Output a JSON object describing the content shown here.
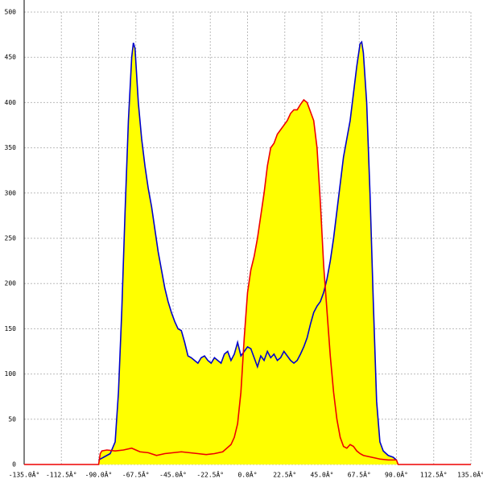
{
  "chart_data": {
    "type": "area",
    "xlim": [
      -135,
      135
    ],
    "ylim": [
      0,
      500
    ],
    "xticks": [
      {
        "value": -135,
        "label": "-135.0Â°"
      },
      {
        "value": -112.5,
        "label": "-112.5Â°"
      },
      {
        "value": -90,
        "label": "-90.0Â°"
      },
      {
        "value": -67.5,
        "label": "-67.5Â°"
      },
      {
        "value": -45,
        "label": "-45.0Â°"
      },
      {
        "value": -22.5,
        "label": "-22.5Â°"
      },
      {
        "value": 0,
        "label": "0.0Â°"
      },
      {
        "value": 22.5,
        "label": "22.5Â°"
      },
      {
        "value": 45,
        "label": "45.0Â°"
      },
      {
        "value": 67.5,
        "label": "67.5Â°"
      },
      {
        "value": 90,
        "label": "90.0Â°"
      },
      {
        "value": 112.5,
        "label": "112.5Â°"
      },
      {
        "value": 135,
        "label": "135.0Â°"
      }
    ],
    "yticks": [
      0,
      50,
      100,
      150,
      200,
      250,
      300,
      350,
      400,
      450,
      500
    ],
    "grid": true,
    "fill_color": "#ffff00",
    "series": [
      {
        "color": "#0000cc",
        "x": [
          -90,
          -87,
          -83,
          -80,
          -78,
          -76,
          -74,
          -72,
          -70,
          -69,
          -68,
          -66,
          -64,
          -62,
          -60,
          -58,
          -56,
          -54,
          -52,
          -50,
          -48,
          -46,
          -44,
          -42,
          -40,
          -38,
          -36,
          -34,
          -32,
          -30,
          -28,
          -26,
          -24,
          -22,
          -20,
          -18,
          -16,
          -14,
          -12,
          -10,
          -8,
          -6,
          -4,
          -2,
          0,
          2,
          4,
          6,
          8,
          10,
          12,
          14,
          16,
          18,
          20,
          22,
          24,
          26,
          28,
          30,
          32,
          34,
          36,
          38,
          40,
          42,
          44,
          46,
          48,
          50,
          52,
          54,
          56,
          58,
          60,
          62,
          64,
          66,
          68,
          69,
          70,
          72,
          74,
          76,
          78,
          80,
          82,
          85,
          88,
          90
        ],
        "values": [
          5,
          8,
          12,
          25,
          80,
          170,
          280,
          380,
          450,
          466,
          460,
          400,
          360,
          330,
          305,
          285,
          260,
          235,
          215,
          195,
          180,
          168,
          158,
          150,
          148,
          135,
          120,
          118,
          115,
          112,
          118,
          120,
          115,
          112,
          118,
          115,
          112,
          122,
          125,
          115,
          122,
          135,
          120,
          125,
          130,
          128,
          118,
          108,
          120,
          115,
          125,
          118,
          122,
          115,
          118,
          125,
          120,
          115,
          112,
          115,
          122,
          130,
          140,
          155,
          168,
          175,
          180,
          190,
          205,
          225,
          250,
          280,
          310,
          340,
          360,
          380,
          410,
          440,
          465,
          467,
          455,
          400,
          300,
          180,
          70,
          25,
          15,
          10,
          8,
          5
        ]
      },
      {
        "color": "#ee0000",
        "x": [
          -135,
          -90,
          -89,
          -88,
          -85,
          -80,
          -75,
          -70,
          -65,
          -60,
          -55,
          -50,
          -45,
          -40,
          -35,
          -30,
          -25,
          -20,
          -15,
          -10,
          -8,
          -6,
          -4,
          -2,
          0,
          2,
          4,
          6,
          8,
          10,
          12,
          14,
          16,
          18,
          20,
          22,
          24,
          26,
          28,
          30,
          32,
          34,
          36,
          38,
          40,
          42,
          44,
          46,
          48,
          50,
          52,
          54,
          56,
          58,
          60,
          62,
          64,
          66,
          68,
          70,
          75,
          80,
          85,
          90,
          91,
          135
        ],
        "values": [
          0,
          0,
          12,
          15,
          16,
          15,
          16,
          18,
          14,
          13,
          10,
          12,
          13,
          14,
          13,
          12,
          11,
          12,
          14,
          22,
          30,
          45,
          80,
          140,
          190,
          215,
          230,
          250,
          275,
          300,
          330,
          350,
          355,
          365,
          370,
          375,
          380,
          388,
          392,
          392,
          398,
          403,
          400,
          390,
          380,
          350,
          290,
          220,
          170,
          120,
          80,
          50,
          30,
          20,
          18,
          22,
          20,
          15,
          12,
          10,
          8,
          6,
          5,
          5,
          0,
          0
        ]
      }
    ]
  }
}
